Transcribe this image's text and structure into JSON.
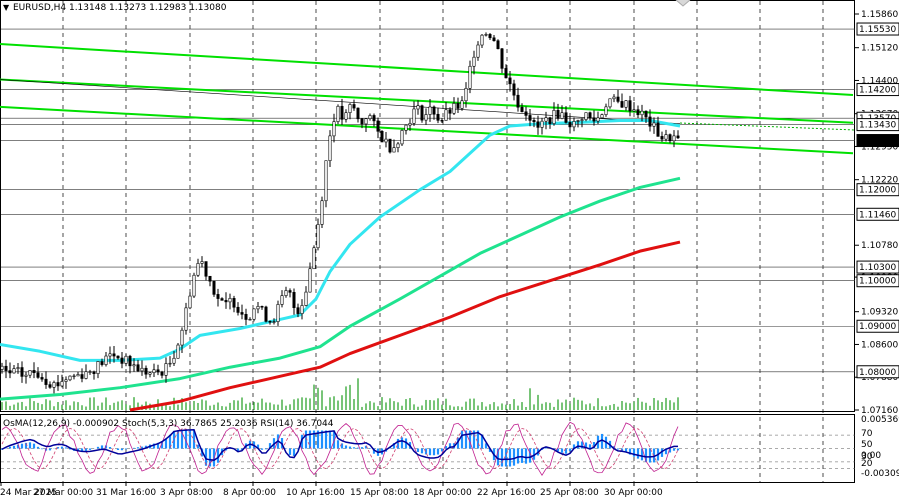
{
  "header": {
    "symbol_line": "EURUSD,H4  1.13148 1.13273 1.12983 1.13080"
  },
  "price_axis": {
    "labels": [
      "1.15860",
      "1.15120",
      "1.14400",
      "1.13670",
      "1.12950",
      "1.12220",
      "1.10780",
      "1.10080",
      "1.09320",
      "1.08600",
      "1.07880",
      "1.07160"
    ],
    "levels": [
      {
        "value": "1.15530",
        "kind": "box"
      },
      {
        "value": "1.14200",
        "kind": "box"
      },
      {
        "value": "1.13570",
        "kind": "box"
      },
      {
        "value": "1.13430",
        "kind": "box"
      },
      {
        "value": "1.13080",
        "kind": "current"
      },
      {
        "value": "1.12000",
        "kind": "box"
      },
      {
        "value": "1.11460",
        "kind": "box"
      },
      {
        "value": "1.10300",
        "kind": "box"
      },
      {
        "value": "1.10000",
        "kind": "box"
      },
      {
        "value": "1.09000",
        "kind": "box"
      },
      {
        "value": "1.08000",
        "kind": "box"
      }
    ]
  },
  "time_axis": {
    "labels": [
      "24 Mar 2025",
      "27 Mar 00:00",
      "31 Mar 16:00",
      "3 Apr 08:00",
      "8 Apr 00:00",
      "10 Apr 16:00",
      "15 Apr 08:00",
      "18 Apr 00:00",
      "22 Apr 16:00",
      "25 Apr 08:00",
      "30 Apr 00:00"
    ]
  },
  "indicator": {
    "label": "OsMA(12,26,9) -0.000902 Stoch(5,3,3) 36.7865 25.2036 RSI(14) 36.7044",
    "axis_labels": [
      "0.005369",
      "70",
      "50",
      "30",
      "20",
      "0.00",
      "-0.003094"
    ]
  },
  "colors": {
    "candles": "#000000",
    "channel": "#00e000",
    "ema_fast": "#33e6f0",
    "ema_mid": "#1fe38f",
    "ema_slow": "#e01010",
    "volume": "#2fa52f",
    "osma": "#1e90ff",
    "stoch": "#c02090",
    "rsi": "#000099"
  },
  "chart_data": {
    "type": "candlestick",
    "symbol": "EURUSD",
    "timeframe": "H4",
    "x_range": [
      "24 Mar 2025",
      "1 May 2025"
    ],
    "ylim": [
      1.0716,
      1.1586
    ],
    "last": {
      "open": 1.13148,
      "high": 1.13273,
      "low": 1.12983,
      "close": 1.1308
    },
    "close_path": [
      [
        0,
        1.0805
      ],
      [
        8,
        1.0795
      ],
      [
        16,
        1.08
      ],
      [
        24,
        1.079
      ],
      [
        32,
        1.08
      ],
      [
        40,
        1.0795
      ],
      [
        48,
        1.078
      ],
      [
        56,
        1.077
      ],
      [
        64,
        1.0785
      ],
      [
        72,
        1.079
      ],
      [
        80,
        1.0795
      ],
      [
        88,
        1.08
      ],
      [
        96,
        1.081
      ],
      [
        104,
        1.0825
      ],
      [
        112,
        1.084
      ],
      [
        120,
        1.083
      ],
      [
        128,
        1.082
      ],
      [
        136,
        1.081
      ],
      [
        144,
        1.08
      ],
      [
        152,
        1.0795
      ],
      [
        160,
        1.08
      ],
      [
        168,
        1.081
      ],
      [
        176,
        1.085
      ],
      [
        184,
        1.091
      ],
      [
        192,
        1.1
      ],
      [
        200,
        1.105
      ],
      [
        208,
        1.101
      ],
      [
        216,
        1.097
      ],
      [
        224,
        1.094
      ],
      [
        232,
        1.096
      ],
      [
        240,
        1.0935
      ],
      [
        248,
        1.092
      ],
      [
        256,
        1.095
      ],
      [
        264,
        1.0925
      ],
      [
        272,
        1.091
      ],
      [
        280,
        1.095
      ],
      [
        288,
        1.098
      ],
      [
        296,
        1.093
      ],
      [
        304,
        1.096
      ],
      [
        312,
        1.105
      ],
      [
        320,
        1.115
      ],
      [
        328,
        1.13
      ],
      [
        336,
        1.138
      ],
      [
        344,
        1.135
      ],
      [
        352,
        1.139
      ],
      [
        360,
        1.134
      ],
      [
        368,
        1.137
      ],
      [
        376,
        1.133
      ],
      [
        384,
        1.131
      ],
      [
        392,
        1.129
      ],
      [
        400,
        1.132
      ],
      [
        408,
        1.135
      ],
      [
        416,
        1.138
      ],
      [
        424,
        1.136
      ],
      [
        432,
        1.138
      ],
      [
        440,
        1.135
      ],
      [
        448,
        1.137
      ],
      [
        456,
        1.138
      ],
      [
        464,
        1.139
      ],
      [
        472,
        1.149
      ],
      [
        480,
        1.154
      ],
      [
        488,
        1.155
      ],
      [
        496,
        1.152
      ],
      [
        504,
        1.146
      ],
      [
        512,
        1.142
      ],
      [
        520,
        1.138
      ],
      [
        528,
        1.137
      ],
      [
        536,
        1.133
      ],
      [
        544,
        1.135
      ],
      [
        552,
        1.136
      ],
      [
        560,
        1.137
      ],
      [
        568,
        1.135
      ],
      [
        576,
        1.134
      ],
      [
        584,
        1.137
      ],
      [
        592,
        1.135
      ],
      [
        600,
        1.136
      ],
      [
        608,
        1.14
      ],
      [
        616,
        1.139
      ],
      [
        624,
        1.139
      ],
      [
        632,
        1.138
      ],
      [
        640,
        1.137
      ],
      [
        648,
        1.135
      ],
      [
        656,
        1.133
      ],
      [
        664,
        1.131
      ],
      [
        672,
        1.1318
      ],
      [
        678,
        1.1308
      ]
    ],
    "ema_fast": [
      [
        0,
        1.086
      ],
      [
        40,
        1.0845
      ],
      [
        80,
        1.0825
      ],
      [
        120,
        1.0825
      ],
      [
        160,
        1.083
      ],
      [
        180,
        1.085
      ],
      [
        200,
        1.088
      ],
      [
        240,
        1.0895
      ],
      [
        280,
        1.0915
      ],
      [
        300,
        1.0925
      ],
      [
        316,
        1.096
      ],
      [
        330,
        1.102
      ],
      [
        350,
        1.108
      ],
      [
        380,
        1.114
      ],
      [
        420,
        1.12
      ],
      [
        450,
        1.124
      ],
      [
        470,
        1.128
      ],
      [
        490,
        1.132
      ],
      [
        510,
        1.134
      ],
      [
        540,
        1.1345
      ],
      [
        580,
        1.1348
      ],
      [
        620,
        1.1352
      ],
      [
        650,
        1.1352
      ],
      [
        680,
        1.134
      ]
    ],
    "ema_mid": [
      [
        0,
        1.074
      ],
      [
        60,
        1.075
      ],
      [
        120,
        1.0765
      ],
      [
        180,
        1.0785
      ],
      [
        230,
        1.081
      ],
      [
        280,
        1.083
      ],
      [
        320,
        1.0855
      ],
      [
        350,
        1.09
      ],
      [
        400,
        1.096
      ],
      [
        440,
        1.101
      ],
      [
        480,
        1.106
      ],
      [
        520,
        1.11
      ],
      [
        560,
        1.114
      ],
      [
        600,
        1.1175
      ],
      [
        640,
        1.1205
      ],
      [
        680,
        1.1225
      ]
    ],
    "ema_slow": [
      [
        130,
        1.0716
      ],
      [
        180,
        1.0735
      ],
      [
        230,
        1.0765
      ],
      [
        280,
        1.079
      ],
      [
        320,
        1.081
      ],
      [
        350,
        1.084
      ],
      [
        400,
        1.088
      ],
      [
        450,
        1.092
      ],
      [
        500,
        1.0965
      ],
      [
        550,
        1.1
      ],
      [
        600,
        1.1035
      ],
      [
        640,
        1.1065
      ],
      [
        680,
        1.1085
      ]
    ],
    "channel_lines": [
      {
        "from": [
          0,
          1.152
        ],
        "to": [
          853,
          1.1408
        ]
      },
      {
        "from": [
          0,
          1.1382
        ],
        "to": [
          853,
          1.128
        ]
      },
      {
        "from": [
          0,
          1.1442
        ],
        "to": [
          853,
          1.1347
        ]
      }
    ],
    "indicator": {
      "osma_last": -0.000902,
      "stoch_main_last": 36.7865,
      "stoch_signal_last": 25.2036,
      "rsi_last": 36.7044,
      "levels": [
        70,
        50,
        30,
        20
      ]
    }
  }
}
